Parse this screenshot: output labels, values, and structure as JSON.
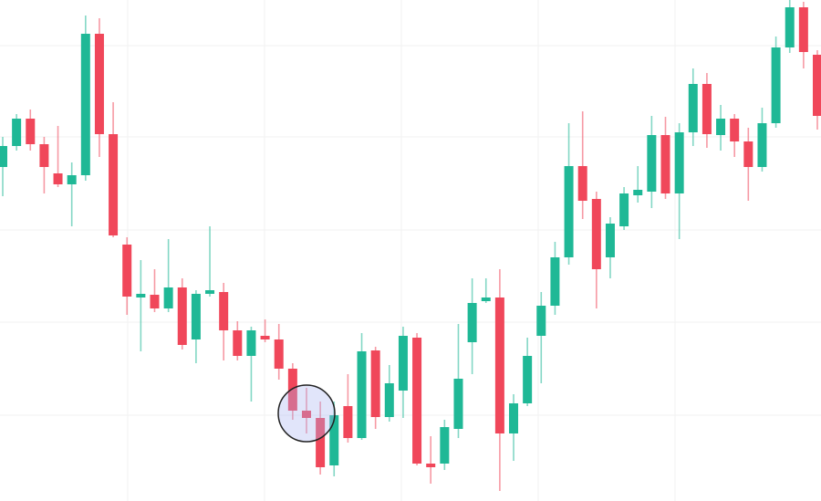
{
  "chart_data": {
    "type": "candlestick",
    "up_color": "#1fb896",
    "down_color": "#f0475a",
    "ylim": [
      0,
      549
    ],
    "open": [
      366,
      389,
      419,
      391,
      359,
      347,
      357,
      512,
      402,
      281,
      223,
      226,
      211,
      234,
      177,
      227,
      229,
      187,
      159,
      181,
      177,
      145,
      99,
      91,
      39,
      104,
      69,
      165,
      92,
      121,
      179,
      41,
      41,
      79,
      174,
      219,
      223,
      74,
      107,
      181,
      214,
      267,
      367,
      331,
      267,
      301,
      335,
      339,
      401,
      337,
      404,
      457,
      401,
      419,
      394,
      366,
      414,
      497,
      541,
      489
    ],
    "high": [
      399,
      424,
      429,
      399,
      411,
      371,
      532,
      529,
      437,
      289,
      264,
      254,
      287,
      244,
      231,
      301,
      239,
      197,
      191,
      199,
      194,
      151,
      124,
      109,
      109,
      139,
      184,
      169,
      149,
      191,
      184,
      71,
      89,
      194,
      244,
      244,
      254,
      117,
      179,
      229,
      284,
      414,
      427,
      339,
      311,
      344,
      367,
      422,
      421,
      414,
      474,
      469,
      434,
      424,
      409,
      431,
      509,
      549,
      547,
      494
    ],
    "low": [
      334,
      384,
      384,
      337,
      344,
      301,
      351,
      377,
      289,
      204,
      164,
      207,
      207,
      166,
      151,
      224,
      154,
      154,
      109,
      174,
      133,
      89,
      74,
      29,
      27,
      64,
      67,
      79,
      87,
      91,
      39,
      19,
      34,
      69,
      139,
      217,
      11,
      44,
      104,
      129,
      204,
      259,
      309,
      211,
      244,
      297,
      327,
      321,
      331,
      287,
      389,
      387,
      384,
      377,
      329,
      361,
      409,
      491,
      474,
      407
    ],
    "close": [
      389,
      419,
      391,
      366,
      347,
      357,
      512,
      402,
      291,
      224,
      227,
      211,
      234,
      171,
      227,
      231,
      187,
      159,
      187,
      177,
      145,
      99,
      91,
      37,
      94,
      69,
      164,
      92,
      129,
      181,
      41,
      37,
      81,
      134,
      217,
      223,
      74,
      107,
      159,
      214,
      267,
      367,
      329,
      254,
      304,
      337,
      341,
      401,
      337,
      404,
      457,
      402,
      419,
      394,
      366,
      414,
      497,
      541,
      492,
      422
    ]
  }
}
